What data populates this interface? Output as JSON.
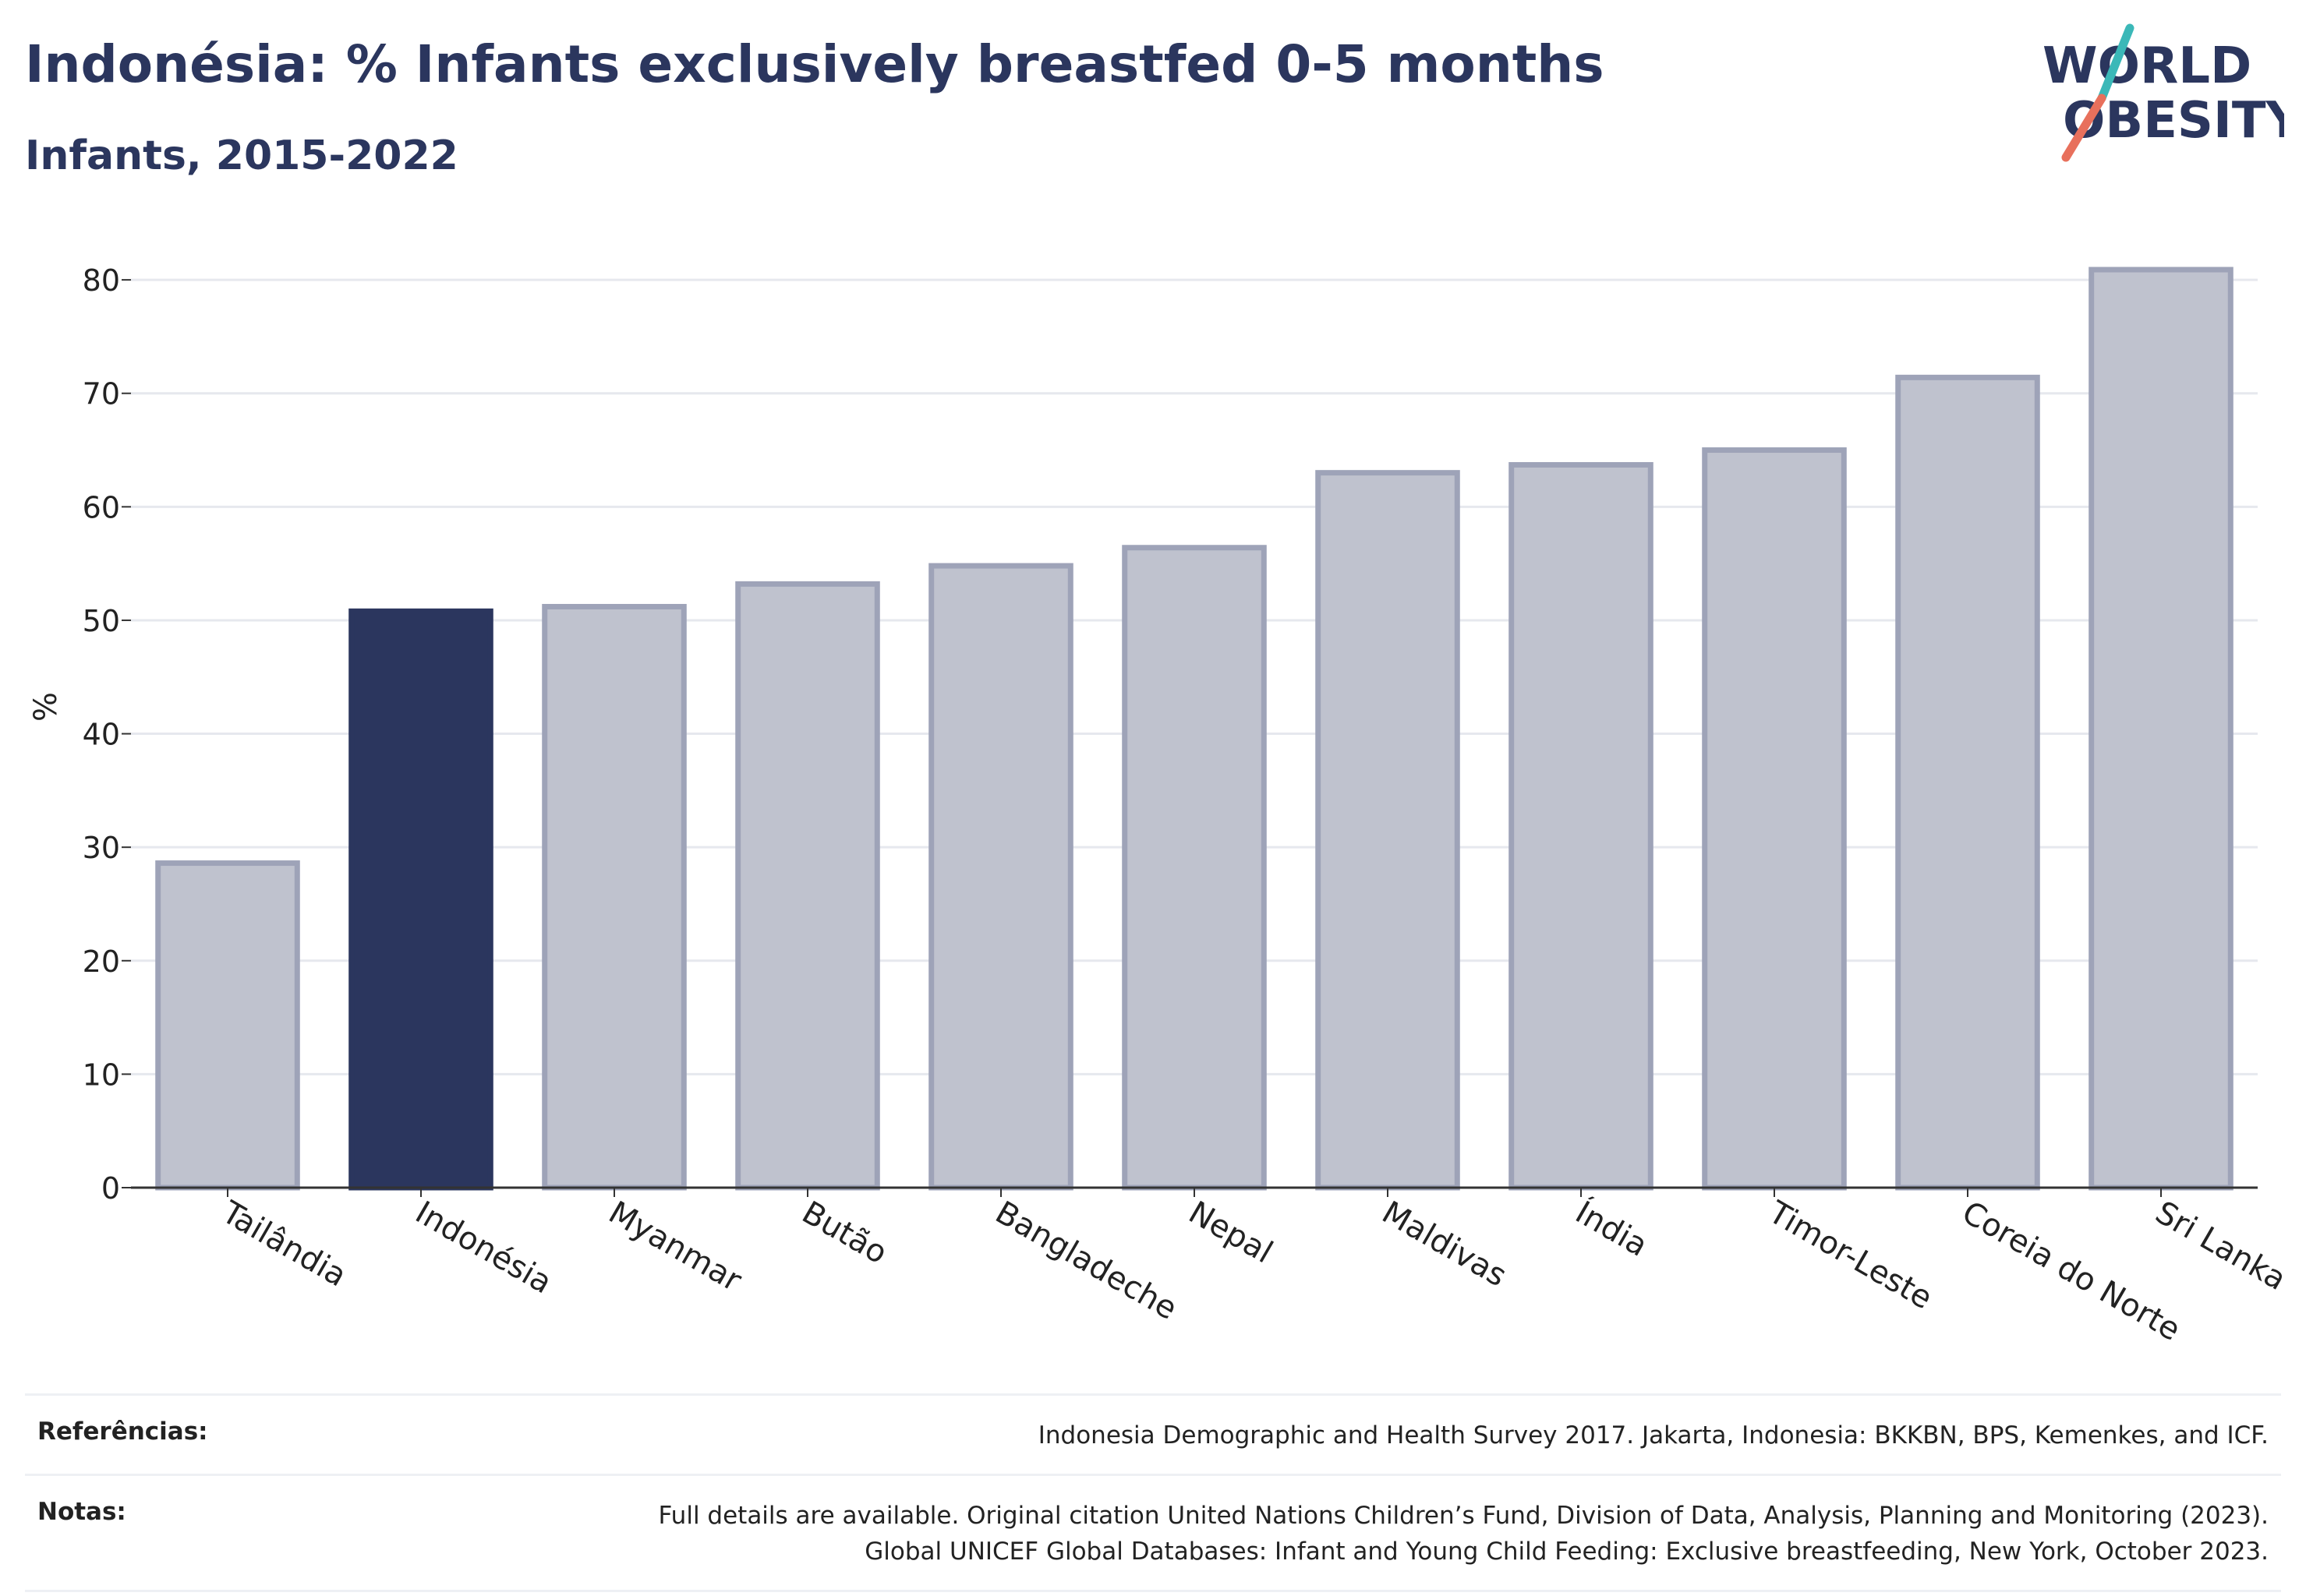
{
  "header": {
    "title": "Indonésia: % Infants exclusively breastfed 0-5 months",
    "subtitle": "Infants, 2015-2022"
  },
  "logo": {
    "line1": "WORLD",
    "line2": "OBESITY"
  },
  "chart_data": {
    "type": "bar",
    "title": "Indonésia: % Infants exclusively breastfed 0-5 months",
    "subtitle": "Infants, 2015-2022",
    "xlabel": "",
    "ylabel": "%",
    "ylim": [
      0,
      82
    ],
    "yticks": [
      0,
      10,
      20,
      30,
      40,
      50,
      60,
      70,
      80
    ],
    "grid": true,
    "categories": [
      "Tailândia",
      "Indonésia",
      "Myanmar",
      "Butão",
      "Bangladeche",
      "Nepal",
      "Maldivas",
      "Índia",
      "Timor-Leste",
      "Coreia do Norte",
      "Sri Lanka"
    ],
    "values": [
      28.6,
      50.8,
      51.2,
      53.2,
      54.8,
      56.4,
      63.0,
      63.7,
      65.0,
      71.4,
      80.9
    ],
    "highlight": "Indonésia",
    "colors": {
      "bar": "#bfc2ce",
      "bar_edge": "#9ea3b8",
      "highlight": "#2b365e",
      "grid": "#e6e8ee",
      "axis": "#333333"
    }
  },
  "footer": {
    "references_label": "Referências:",
    "references_text": "Indonesia Demographic and Health Survey 2017. Jakarta, Indonesia: BKKBN, BPS, Kemenkes, and ICF.",
    "notes_label": "Notas:",
    "notes_line1": "Full details are available. Original citation United Nations Children’s Fund, Division of Data, Analysis, Planning and Monitoring (2023).",
    "notes_line2": "Global UNICEF Global Databases: Infant and Young Child Feeding: Exclusive breastfeeding, New York, October 2023."
  }
}
